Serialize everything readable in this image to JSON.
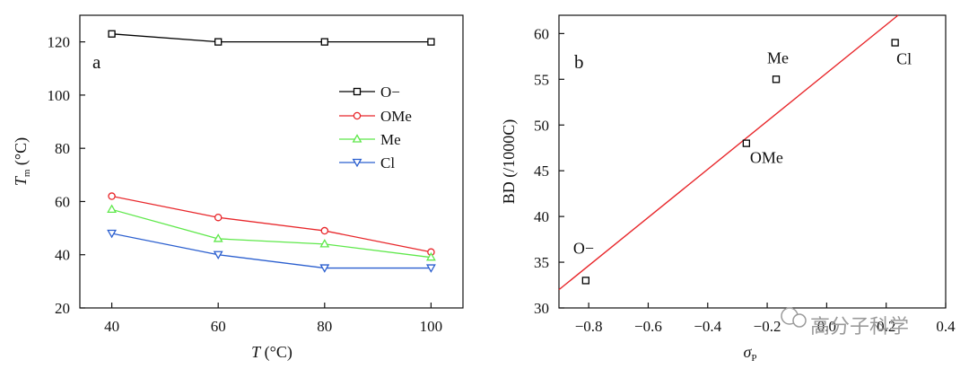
{
  "chart_data": [
    {
      "type": "line",
      "panel_label": "a",
      "x": [
        40,
        60,
        80,
        100
      ],
      "series": [
        {
          "name": "O−",
          "marker": "square",
          "color": "#000000",
          "values": [
            123,
            120,
            120,
            120
          ]
        },
        {
          "name": "OMe",
          "marker": "circle",
          "color": "#e8262a",
          "values": [
            62,
            54,
            49,
            41
          ]
        },
        {
          "name": "Me",
          "marker": "triangle-up",
          "color": "#5ee84a",
          "values": [
            57,
            46,
            44,
            39
          ]
        },
        {
          "name": "Cl",
          "marker": "triangle-down",
          "color": "#2b5fcf",
          "values": [
            48,
            40,
            35,
            35
          ]
        }
      ],
      "xlabel_var": "T",
      "xlabel_unit": " (°C)",
      "ylabel_var": "T",
      "ylabel_sub": "m",
      "ylabel_unit": " (°C)",
      "xlim": [
        34,
        106
      ],
      "ylim": [
        20,
        130
      ],
      "xticks": [
        "40",
        "60",
        "80",
        "100"
      ],
      "yticks": [
        "20",
        "40",
        "60",
        "80",
        "100",
        "120"
      ],
      "legend_position": "upper-right",
      "grid": false
    },
    {
      "type": "scatter",
      "panel_label": "b",
      "points": [
        {
          "label": "O−",
          "x": -0.81,
          "y": 33
        },
        {
          "label": "OMe",
          "x": -0.27,
          "y": 48
        },
        {
          "label": "Me",
          "x": -0.17,
          "y": 55
        },
        {
          "label": "Cl",
          "x": 0.23,
          "y": 59
        }
      ],
      "fit_line": {
        "color": "#e8262a",
        "from": [
          -0.9,
          32
        ],
        "to": [
          0.24,
          62
        ]
      },
      "xlabel_var": "σ",
      "xlabel_sub": "P",
      "ylabel": "BD (/1000C)",
      "xlim": [
        -0.9,
        0.4
      ],
      "ylim": [
        30,
        62
      ],
      "xticks": [
        "−0.8",
        "−0.6",
        "−0.4",
        "−0.2",
        "0.0",
        "0.2",
        "0.4"
      ],
      "yticks": [
        "30",
        "35",
        "40",
        "45",
        "50",
        "55",
        "60"
      ],
      "grid": false
    }
  ],
  "watermark": "高分子科学"
}
